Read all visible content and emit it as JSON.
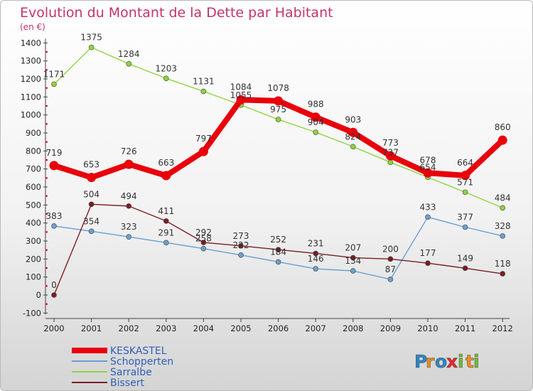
{
  "chart_data": {
    "type": "line",
    "title": "Evolution du Montant de la Dette par Habitant",
    "subtitle": "(en €)",
    "x": [
      "2000",
      "2001",
      "2002",
      "2003",
      "2004",
      "2005",
      "2006",
      "2007",
      "2008",
      "2009",
      "2010",
      "2011",
      "2012"
    ],
    "ylim": [
      -100,
      1400
    ],
    "yticks": [
      -100,
      0,
      100,
      200,
      300,
      400,
      500,
      600,
      700,
      800,
      900,
      1000,
      1100,
      1200,
      1300,
      1400
    ],
    "grid": false,
    "legend_position": "bottom-left",
    "series": [
      {
        "name": "KESKASTEL",
        "color": "#e8000b",
        "values": [
          719,
          653,
          726,
          663,
          797,
          1084,
          1078,
          988,
          903,
          773,
          678,
          664,
          860
        ]
      },
      {
        "name": "Schopperten",
        "color": "#6b9fcf",
        "values": [
          383,
          354,
          323,
          291,
          258,
          222,
          184,
          146,
          134,
          87,
          433,
          377,
          328
        ]
      },
      {
        "name": "Sarralbe",
        "color": "#8fd33f",
        "values": [
          1171,
          1375,
          1284,
          1203,
          1131,
          1055,
          975,
          904,
          824,
          737,
          654,
          571,
          484
        ]
      },
      {
        "name": "Bissert",
        "color": "#7a1d24",
        "values": [
          0,
          504,
          494,
          411,
          292,
          273,
          252,
          231,
          207,
          200,
          177,
          149,
          118
        ]
      }
    ]
  },
  "brand": {
    "letters": [
      "P",
      "r",
      "o",
      "x",
      "i",
      "t",
      "i"
    ],
    "colors": [
      "#2b86c9",
      "#f28c1e",
      "#2b86c9",
      "#e8262d",
      "#6cbf2e",
      "#f28c1e",
      "#6cbf2e"
    ]
  }
}
